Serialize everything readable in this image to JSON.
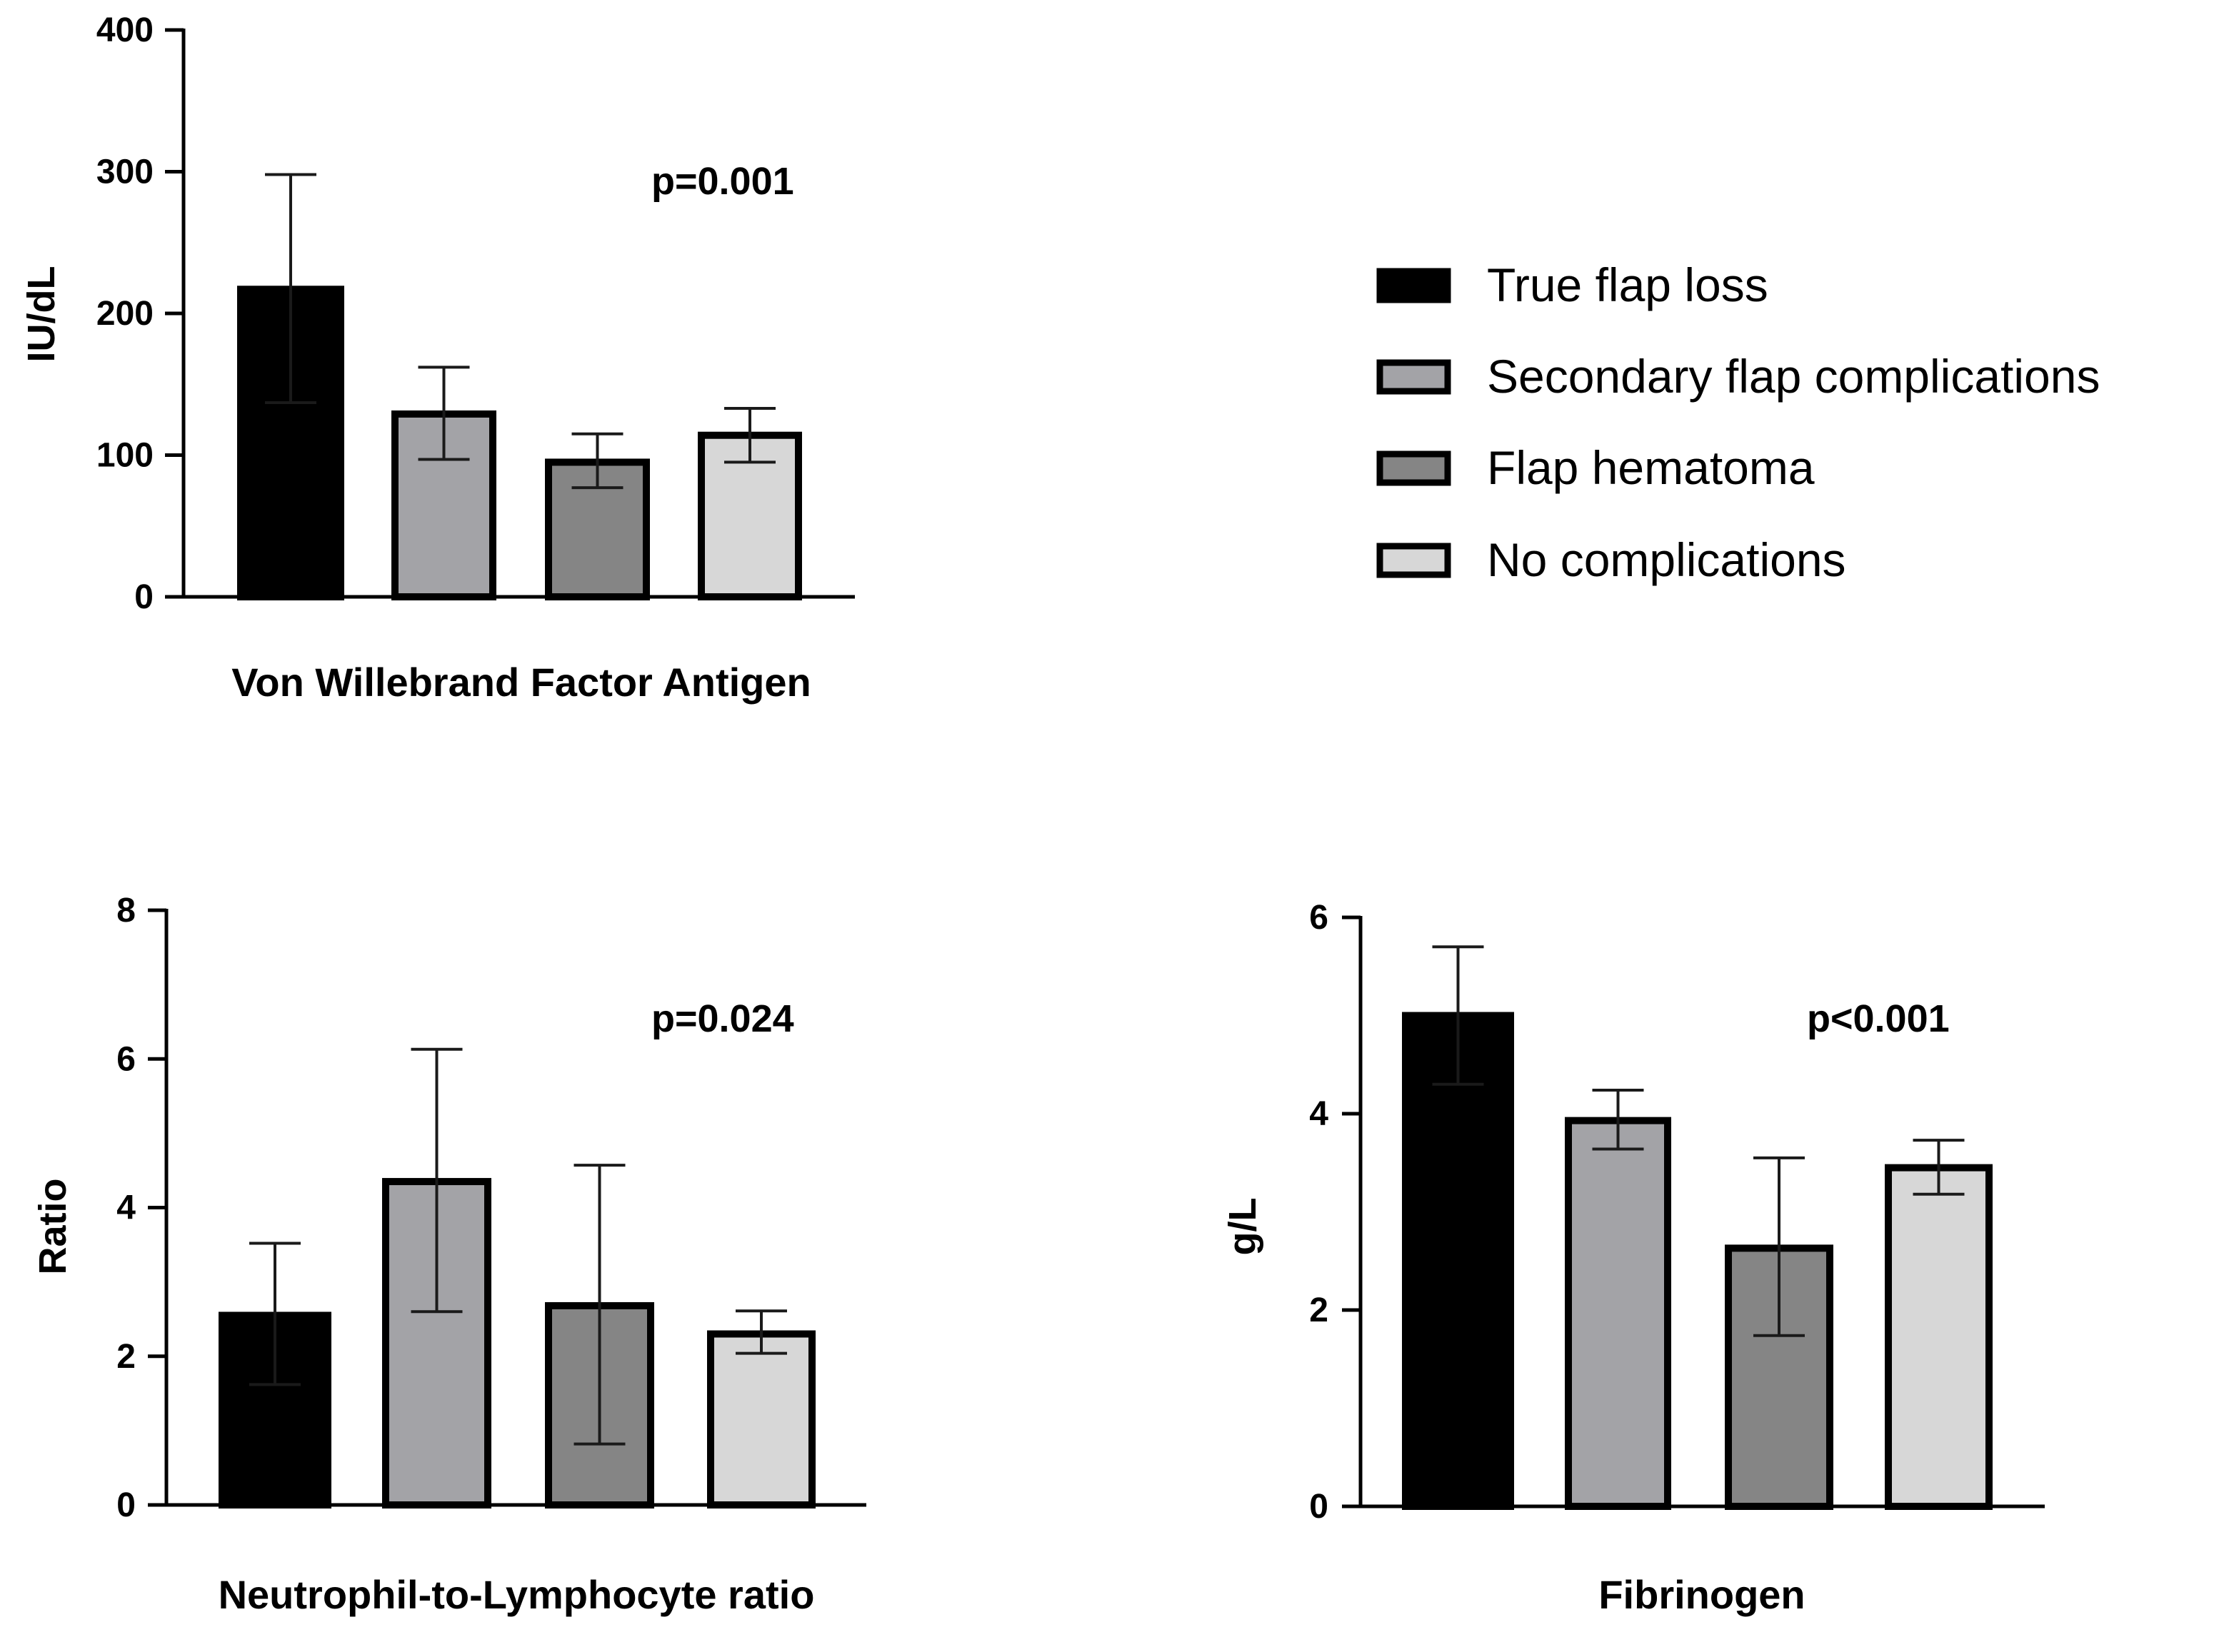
{
  "groups": [
    "True flap loss",
    "Secondary flap complications",
    "Flap hematoma",
    "No complications"
  ],
  "colors": {
    "true_flap_loss": "#000000",
    "secondary_flap_complications": "#a3a3a7",
    "flap_hematoma": "#858585",
    "no_complications": "#d7d7d7",
    "bar_outline": "#000000",
    "error_bar": "#1a1a1a"
  },
  "legend": {
    "items": [
      {
        "label": "True flap loss",
        "color": "#000000"
      },
      {
        "label": "Secondary flap complications",
        "color": "#a3a3a7"
      },
      {
        "label": "Flap hematoma",
        "color": "#858585"
      },
      {
        "label": "No complications",
        "color": "#d7d7d7"
      }
    ]
  },
  "chart_data": [
    {
      "type": "bar",
      "title": "Von Willebrand Factor Antigen",
      "ylabel": "IU/dL",
      "annotation": "p=0.001",
      "categories": [
        "True flap loss",
        "Secondary flap complications",
        "Flap hematoma",
        "No complications"
      ],
      "values": [
        217,
        129,
        95,
        114
      ],
      "error_low": [
        137,
        97,
        77,
        95
      ],
      "error_high": [
        298,
        162,
        115,
        133
      ],
      "ylim": [
        0,
        400
      ],
      "yticks": [
        0,
        100,
        200,
        300,
        400
      ],
      "ytick_labels": [
        "0",
        "100",
        "200",
        "300",
        "400"
      ]
    },
    {
      "type": "bar",
      "title": "Neutrophil-to-Lymphocyte ratio",
      "ylabel": "Ratio",
      "annotation": "p=0.024",
      "categories": [
        "True flap loss",
        "Secondary flap complications",
        "Flap hematoma",
        "No complications"
      ],
      "values": [
        2.55,
        4.35,
        2.68,
        2.3
      ],
      "error_low": [
        1.62,
        2.6,
        0.82,
        2.04
      ],
      "error_high": [
        3.52,
        6.13,
        4.57,
        2.61
      ],
      "ylim": [
        0,
        8
      ],
      "yticks": [
        0,
        2,
        4,
        6,
        8
      ],
      "ytick_labels": [
        "0",
        "2",
        "4",
        "6",
        "8"
      ]
    },
    {
      "type": "bar",
      "title": "Fibrinogen",
      "ylabel": "g/L",
      "annotation": "p<0.001",
      "categories": [
        "True flap loss",
        "Secondary flap complications",
        "Flap hematoma",
        "No complications"
      ],
      "values": [
        5.0,
        3.93,
        2.63,
        3.45
      ],
      "error_low": [
        4.3,
        3.64,
        1.74,
        3.18
      ],
      "error_high": [
        5.7,
        4.24,
        3.55,
        3.73
      ],
      "ylim": [
        0,
        6
      ],
      "yticks": [
        0,
        2,
        4,
        6
      ],
      "ytick_labels": [
        "0",
        "2",
        "4",
        "6"
      ]
    }
  ]
}
